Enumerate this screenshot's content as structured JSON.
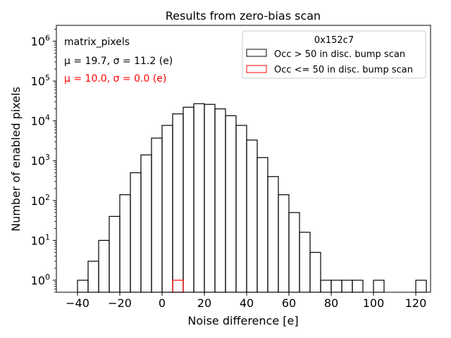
{
  "chart_data": {
    "type": "histogram",
    "title": "Results from zero-bias scan",
    "xlabel": "Noise difference [e]",
    "ylabel": "Number of enabled pixels",
    "yscale": "log",
    "xlim": [
      -50,
      127
    ],
    "ylim": [
      0.5,
      2500000
    ],
    "xticks": [
      -40,
      -20,
      0,
      20,
      40,
      60,
      80,
      100,
      120
    ],
    "yticks": [
      {
        "value": 1,
        "mantissa": "10",
        "exp": "0"
      },
      {
        "value": 10,
        "mantissa": "10",
        "exp": "1"
      },
      {
        "value": 100,
        "mantissa": "10",
        "exp": "2"
      },
      {
        "value": 1000,
        "mantissa": "10",
        "exp": "3"
      },
      {
        "value": 10000,
        "mantissa": "10",
        "exp": "4"
      },
      {
        "value": 100000,
        "mantissa": "10",
        "exp": "5"
      },
      {
        "value": 1000000,
        "mantissa": "10",
        "exp": "6"
      }
    ],
    "annotations": [
      {
        "text": "matrix_pixels",
        "color": "#000000"
      },
      {
        "text": "μ = 19.7, σ = 11.2 (e)",
        "color": "#000000"
      },
      {
        "text": "μ = 10.0, σ = 0.0 (e)",
        "color": "#ff0000"
      }
    ],
    "legend": {
      "title": "0x152c7",
      "position": "top-right",
      "entries": [
        {
          "label": "Occ > 50 in disc. bump scan",
          "color": "#000000"
        },
        {
          "label": "Occ <= 50 in disc. bump scan",
          "color": "#ff0000"
        }
      ]
    },
    "series": [
      {
        "name": "Occ > 50 in disc. bump scan",
        "color": "#000000",
        "bin_edges": [
          -40,
          -35,
          -30,
          -25,
          -20,
          -15,
          -10,
          -5,
          0,
          5,
          10,
          15,
          20,
          25,
          30,
          35,
          40,
          45,
          50,
          55,
          60,
          65,
          70,
          75,
          80,
          85,
          90,
          95,
          100,
          105,
          110,
          115,
          120,
          125
        ],
        "counts": [
          1,
          3,
          10,
          40,
          140,
          500,
          1400,
          3700,
          7700,
          15000,
          22000,
          27000,
          26000,
          20000,
          13500,
          7700,
          3300,
          1200,
          400,
          140,
          50,
          16,
          5,
          1,
          1,
          1,
          1,
          0,
          1,
          0,
          0,
          0,
          1
        ]
      },
      {
        "name": "Occ <= 50 in disc. bump scan",
        "color": "#ff0000",
        "bin_edges": [
          5,
          10
        ],
        "counts": [
          1
        ]
      }
    ]
  }
}
